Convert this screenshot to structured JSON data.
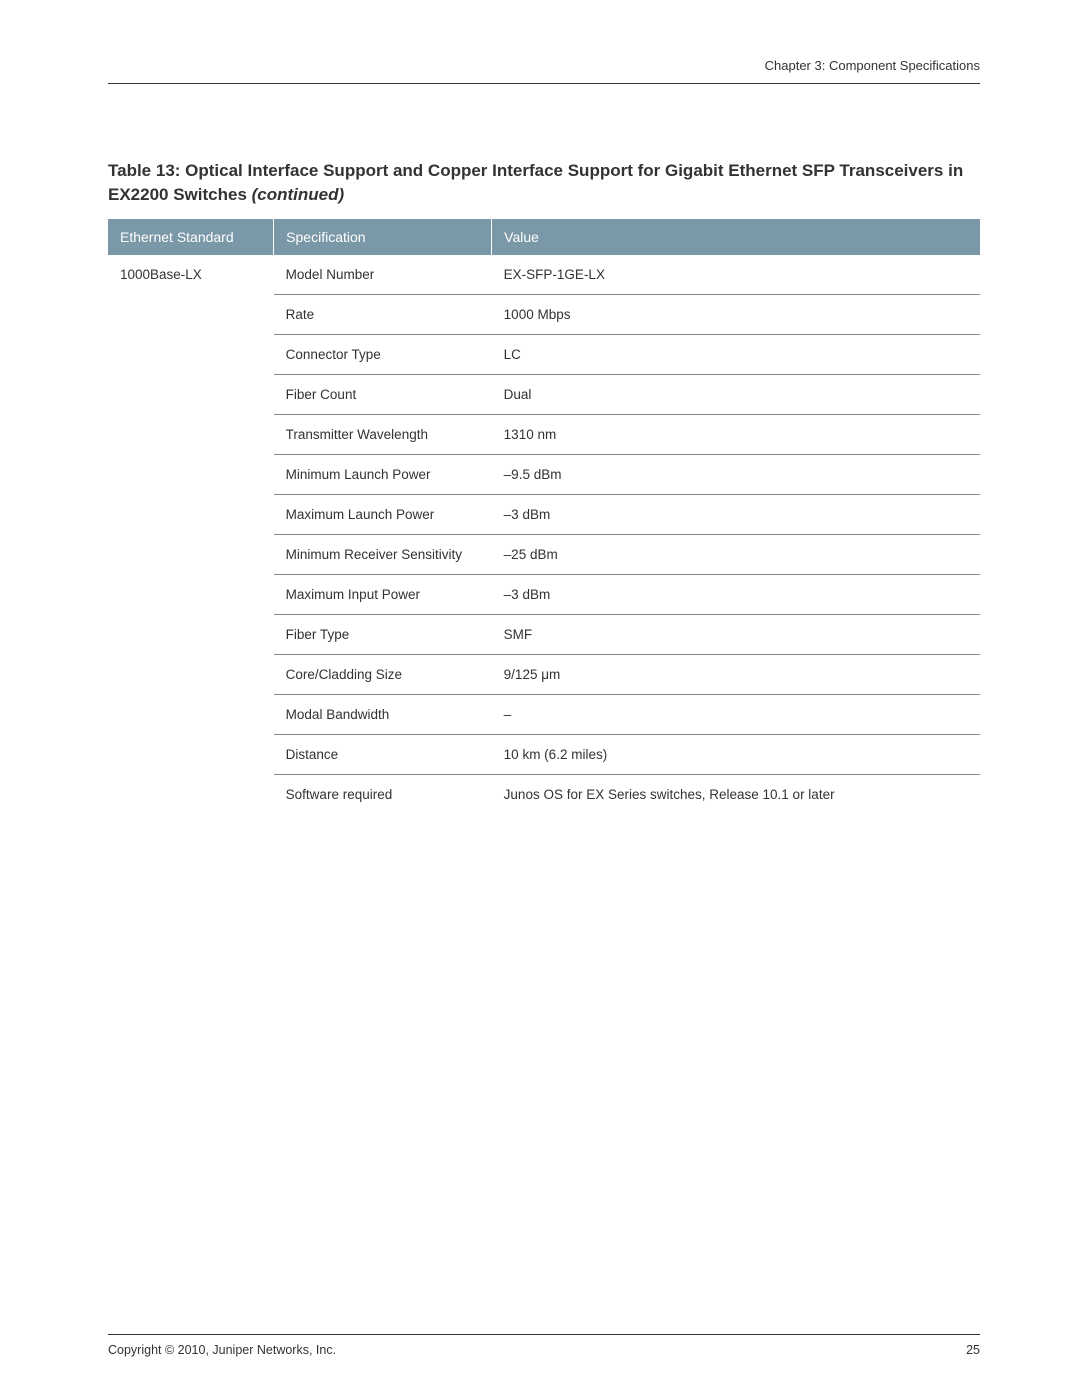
{
  "header": {
    "chapter": "Chapter 3: Component Specifications"
  },
  "table": {
    "title_prefix": "Table 13: Optical Interface Support and Copper Interface Support for Gigabit Ethernet SFP Transceivers in EX2200 Switches ",
    "title_suffix": "(continued)",
    "columns": {
      "standard": "Ethernet Standard",
      "spec": "Specification",
      "value": "Value"
    },
    "standard": "1000Base-LX",
    "rows": [
      {
        "spec": "Model Number",
        "value": "EX-SFP-1GE-LX"
      },
      {
        "spec": "Rate",
        "value": "1000 Mbps"
      },
      {
        "spec": "Connector Type",
        "value": "LC"
      },
      {
        "spec": "Fiber Count",
        "value": "Dual"
      },
      {
        "spec": "Transmitter Wavelength",
        "value": "1310 nm"
      },
      {
        "spec": "Minimum Launch Power",
        "value": "–9.5 dBm"
      },
      {
        "spec": "Maximum Launch Power",
        "value": "–3 dBm"
      },
      {
        "spec": "Minimum Receiver Sensitivity",
        "value": "–25 dBm"
      },
      {
        "spec": "Maximum Input Power",
        "value": "–3 dBm"
      },
      {
        "spec": "Fiber Type",
        "value": "SMF"
      },
      {
        "spec": "Core/Cladding Size",
        "value": "9/125 μm"
      },
      {
        "spec": "Modal Bandwidth",
        "value": "–"
      },
      {
        "spec": "Distance",
        "value": "10 km (6.2 miles)"
      },
      {
        "spec": "Software required",
        "value": "Junos OS for EX Series switches, Release 10.1 or later"
      }
    ]
  },
  "footer": {
    "copyright": "Copyright © 2010, Juniper Networks, Inc.",
    "page_number": "25"
  },
  "style": {
    "header_bg": "#7b98a8",
    "header_text": "#ffffff",
    "body_text": "#333333",
    "row_border": "#888888",
    "page_bg": "#ffffff"
  }
}
